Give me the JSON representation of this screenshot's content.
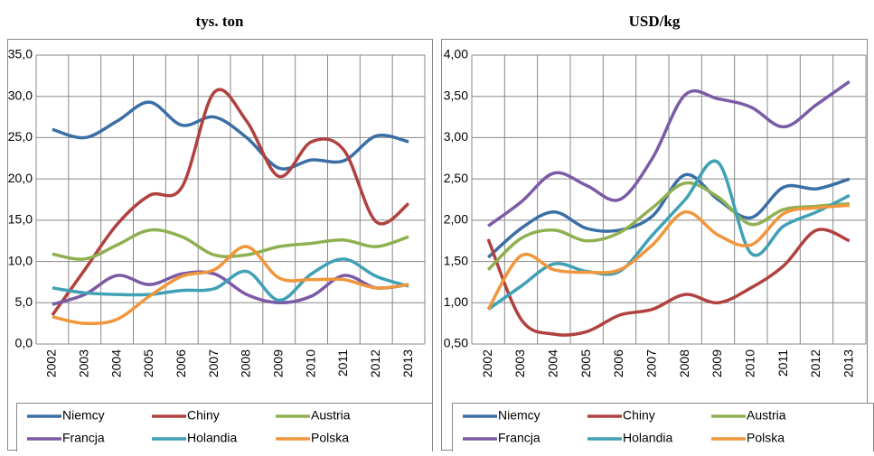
{
  "chart_data": [
    {
      "type": "line",
      "title": "tys. ton",
      "categories": [
        "2002",
        "2003",
        "2004",
        "2005",
        "2006",
        "2007",
        "2008",
        "2009",
        "2010",
        "2011",
        "2012",
        "2013"
      ],
      "ylim": [
        0,
        35
      ],
      "yticks": [
        {
          "value": 0,
          "label": "0,0"
        },
        {
          "value": 5,
          "label": "5,0"
        },
        {
          "value": 10,
          "label": "10,0"
        },
        {
          "value": 15,
          "label": "15,0"
        },
        {
          "value": 20,
          "label": "20,0"
        },
        {
          "value": 25,
          "label": "25,0"
        },
        {
          "value": 30,
          "label": "30,0"
        },
        {
          "value": 35,
          "label": "35,0"
        }
      ],
      "grid": true,
      "series": [
        {
          "name": "Niemcy",
          "color": "#3a6ea5",
          "values": [
            26.0,
            25.0,
            27.0,
            29.3,
            26.5,
            27.5,
            25.0,
            21.3,
            22.3,
            22.2,
            25.2,
            24.5
          ]
        },
        {
          "name": "Chiny",
          "color": "#b0413e",
          "values": [
            3.5,
            9.0,
            14.5,
            18.0,
            19.0,
            30.5,
            27.0,
            20.3,
            24.5,
            23.5,
            14.8,
            17.0
          ]
        },
        {
          "name": "Austria",
          "color": "#8fb050",
          "values": [
            10.9,
            10.3,
            12.0,
            13.8,
            13.0,
            10.8,
            10.8,
            11.8,
            12.2,
            12.6,
            11.8,
            13.0
          ]
        },
        {
          "name": "Francja",
          "color": "#7b5aa6",
          "values": [
            4.8,
            6.0,
            8.3,
            7.2,
            8.5,
            8.5,
            6.0,
            5.0,
            5.8,
            8.3,
            6.8,
            7.2
          ]
        },
        {
          "name": "Holandia",
          "color": "#40a0b5",
          "values": [
            6.8,
            6.2,
            6.0,
            6.0,
            6.5,
            6.7,
            8.8,
            5.3,
            8.5,
            10.3,
            8.2,
            7.0
          ]
        },
        {
          "name": "Polska",
          "color": "#f0963c",
          "values": [
            3.3,
            2.5,
            3.0,
            5.8,
            8.2,
            9.0,
            11.8,
            8.0,
            7.8,
            7.8,
            6.8,
            7.2
          ]
        }
      ]
    },
    {
      "type": "line",
      "title": "USD/kg",
      "categories": [
        "2002",
        "2003",
        "2004",
        "2005",
        "2006",
        "2007",
        "2008",
        "2009",
        "2010",
        "2011",
        "2012",
        "2013"
      ],
      "ylim": [
        0.5,
        4.0
      ],
      "yticks": [
        {
          "value": 0.5,
          "label": "0,50"
        },
        {
          "value": 1.0,
          "label": "1,00"
        },
        {
          "value": 1.5,
          "label": "1,50"
        },
        {
          "value": 2.0,
          "label": "2,00"
        },
        {
          "value": 2.5,
          "label": "2,50"
        },
        {
          "value": 3.0,
          "label": "3,00"
        },
        {
          "value": 3.5,
          "label": "3,50"
        },
        {
          "value": 4.0,
          "label": "4,00"
        }
      ],
      "grid": true,
      "series": [
        {
          "name": "Niemcy",
          "color": "#3a6ea5",
          "values": [
            1.55,
            1.9,
            2.1,
            1.9,
            1.88,
            2.05,
            2.55,
            2.25,
            2.03,
            2.4,
            2.38,
            2.5
          ]
        },
        {
          "name": "Chiny",
          "color": "#b0413e",
          "values": [
            1.77,
            0.8,
            0.62,
            0.65,
            0.85,
            0.92,
            1.1,
            1.0,
            1.18,
            1.45,
            1.88,
            1.75
          ]
        },
        {
          "name": "Austria",
          "color": "#8fb050",
          "values": [
            1.4,
            1.78,
            1.88,
            1.75,
            1.85,
            2.15,
            2.45,
            2.28,
            1.95,
            2.13,
            2.17,
            2.2
          ]
        },
        {
          "name": "Francja",
          "color": "#7b5aa6",
          "values": [
            1.93,
            2.22,
            2.57,
            2.42,
            2.25,
            2.75,
            3.52,
            3.47,
            3.37,
            3.13,
            3.4,
            3.68
          ]
        },
        {
          "name": "Holandia",
          "color": "#40a0b5",
          "values": [
            0.92,
            1.2,
            1.47,
            1.38,
            1.38,
            1.82,
            2.25,
            2.7,
            1.6,
            1.93,
            2.1,
            2.3
          ]
        },
        {
          "name": "Polska",
          "color": "#f0963c",
          "values": [
            0.92,
            1.57,
            1.4,
            1.37,
            1.4,
            1.7,
            2.1,
            1.82,
            1.7,
            2.08,
            2.15,
            2.18
          ]
        }
      ]
    }
  ]
}
